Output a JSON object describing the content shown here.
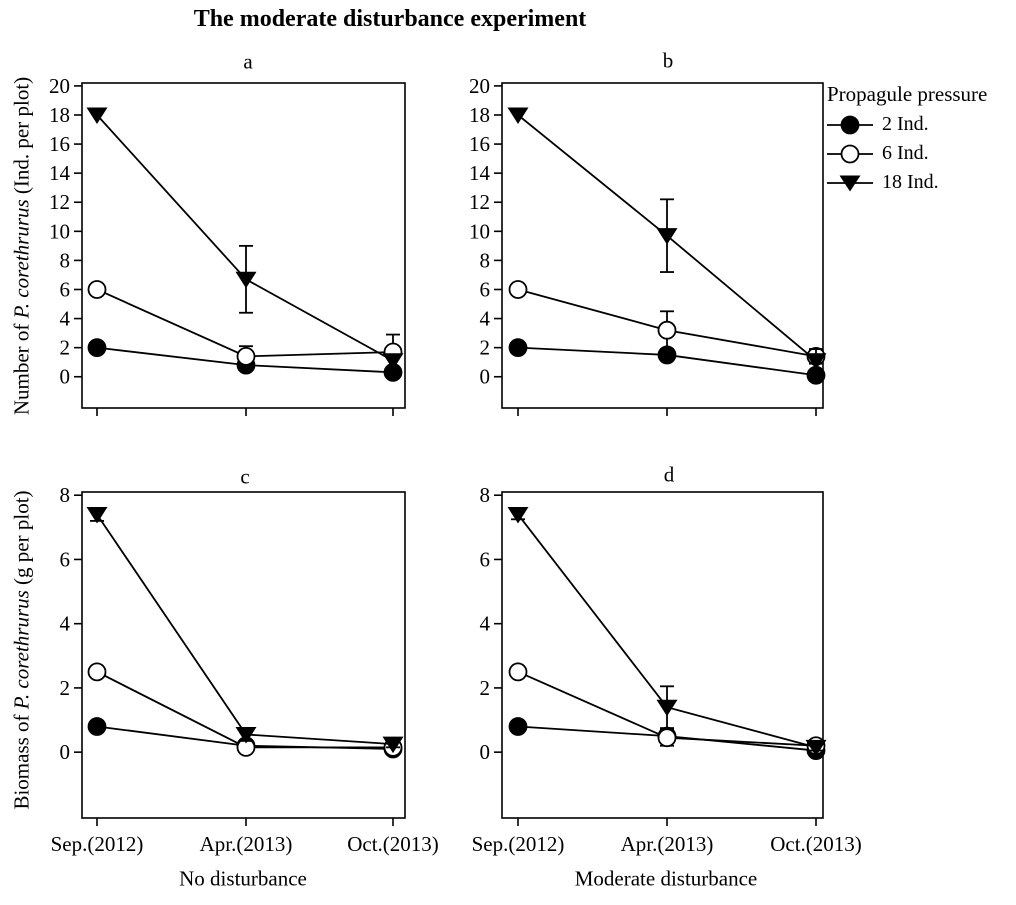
{
  "figure": {
    "title": "The moderate disturbance experiment",
    "background_color": "#ffffff",
    "foreground_color": "#000000"
  },
  "legend": {
    "title": "Propagule pressure",
    "position": "top-right-outside",
    "items": [
      {
        "label": "2 Ind.",
        "marker": "filled-circle"
      },
      {
        "label": "6 Ind.",
        "marker": "open-circle"
      },
      {
        "label": "18 Ind.",
        "marker": "filled-triangle-down"
      }
    ]
  },
  "axes": {
    "y_top": {
      "prefix": "Number of ",
      "species": "P. corethrurus",
      "suffix": " (Ind. per plot)"
    },
    "y_bottom": {
      "prefix": "Biomass of ",
      "species": "P. corethrurus",
      "suffix": " (g per plot)"
    },
    "x_categories": [
      "Sep.(2012)",
      "Apr.(2013)",
      "Oct.(2013)"
    ],
    "column_captions": [
      "No disturbance",
      "Moderate disturbance"
    ]
  },
  "chart_data": [
    {
      "panel": "a",
      "type": "line",
      "row": "top",
      "column": "left",
      "group": "No disturbance",
      "ylabel": "Number of P. corethrurus (Ind. per plot)",
      "x": [
        "Sep.(2012)",
        "Apr.(2013)",
        "Oct.(2013)"
      ],
      "ylim": [
        -2.15,
        20.2
      ],
      "yticks": [
        0,
        2,
        4,
        6,
        8,
        10,
        12,
        14,
        16,
        18,
        20
      ],
      "grid": false,
      "series": [
        {
          "name": "2 Ind.",
          "marker": "filled-circle",
          "values": [
            2,
            0.8,
            0.3
          ],
          "errors": [
            0,
            0,
            0
          ]
        },
        {
          "name": "6 Ind.",
          "marker": "open-circle",
          "values": [
            6,
            1.4,
            1.7
          ],
          "errors": [
            0,
            0.7,
            1.2
          ]
        },
        {
          "name": "18 Ind.",
          "marker": "filled-triangle-down",
          "values": [
            18,
            6.7,
            1.1
          ],
          "errors": [
            0,
            2.3,
            0
          ]
        }
      ]
    },
    {
      "panel": "b",
      "type": "line",
      "row": "top",
      "column": "right",
      "group": "Moderate disturbance",
      "ylabel": "Number of P. corethrurus (Ind. per plot)",
      "x": [
        "Sep.(2012)",
        "Apr.(2013)",
        "Oct.(2013)"
      ],
      "ylim": [
        -2.15,
        20.2
      ],
      "yticks": [
        0,
        2,
        4,
        6,
        8,
        10,
        12,
        14,
        16,
        18,
        20
      ],
      "grid": false,
      "series": [
        {
          "name": "2 Ind.",
          "marker": "filled-circle",
          "values": [
            2,
            1.5,
            0.1
          ],
          "errors": [
            0,
            0,
            0
          ]
        },
        {
          "name": "6 Ind.",
          "marker": "open-circle",
          "values": [
            6,
            3.2,
            1.4
          ],
          "errors": [
            0,
            1.3,
            0.5
          ]
        },
        {
          "name": "18 Ind.",
          "marker": "filled-triangle-down",
          "values": [
            18,
            9.7,
            1.1
          ],
          "errors": [
            0,
            2.5,
            0.8
          ]
        }
      ]
    },
    {
      "panel": "c",
      "type": "line",
      "row": "bottom",
      "column": "left",
      "group": "No disturbance",
      "ylabel": "Biomass of P. corethrurus (g per plot)",
      "x": [
        "Sep.(2012)",
        "Apr.(2013)",
        "Oct.(2013)"
      ],
      "ylim": [
        -2.05,
        8.1
      ],
      "yticks": [
        0,
        2,
        4,
        6,
        8
      ],
      "grid": false,
      "series": [
        {
          "name": "2 Ind.",
          "marker": "filled-circle",
          "values": [
            0.8,
            0.2,
            0.1
          ],
          "errors": [
            0,
            0,
            0
          ]
        },
        {
          "name": "6 Ind.",
          "marker": "open-circle",
          "values": [
            2.5,
            0.15,
            0.15
          ],
          "errors": [
            0,
            0,
            0
          ]
        },
        {
          "name": "18 Ind.",
          "marker": "filled-triangle-down",
          "values": [
            7.4,
            0.55,
            0.25
          ],
          "errors": [
            0.2,
            0.2,
            0.1
          ]
        }
      ]
    },
    {
      "panel": "d",
      "type": "line",
      "row": "bottom",
      "column": "right",
      "group": "Moderate disturbance",
      "ylabel": "Biomass of P. corethrurus (g per plot)",
      "x": [
        "Sep.(2012)",
        "Apr.(2013)",
        "Oct.(2013)"
      ],
      "ylim": [
        -2.05,
        8.1
      ],
      "yticks": [
        0,
        2,
        4,
        6,
        8
      ],
      "grid": false,
      "series": [
        {
          "name": "2 Ind.",
          "marker": "filled-circle",
          "values": [
            0.8,
            0.5,
            0.05
          ],
          "errors": [
            0,
            0,
            0
          ]
        },
        {
          "name": "6 Ind.",
          "marker": "open-circle",
          "values": [
            2.5,
            0.45,
            0.2
          ],
          "errors": [
            0,
            0.25,
            0
          ]
        },
        {
          "name": "18 Ind.",
          "marker": "filled-triangle-down",
          "values": [
            7.4,
            1.4,
            0.15
          ],
          "errors": [
            0.15,
            0.65,
            0.1
          ]
        }
      ]
    }
  ]
}
